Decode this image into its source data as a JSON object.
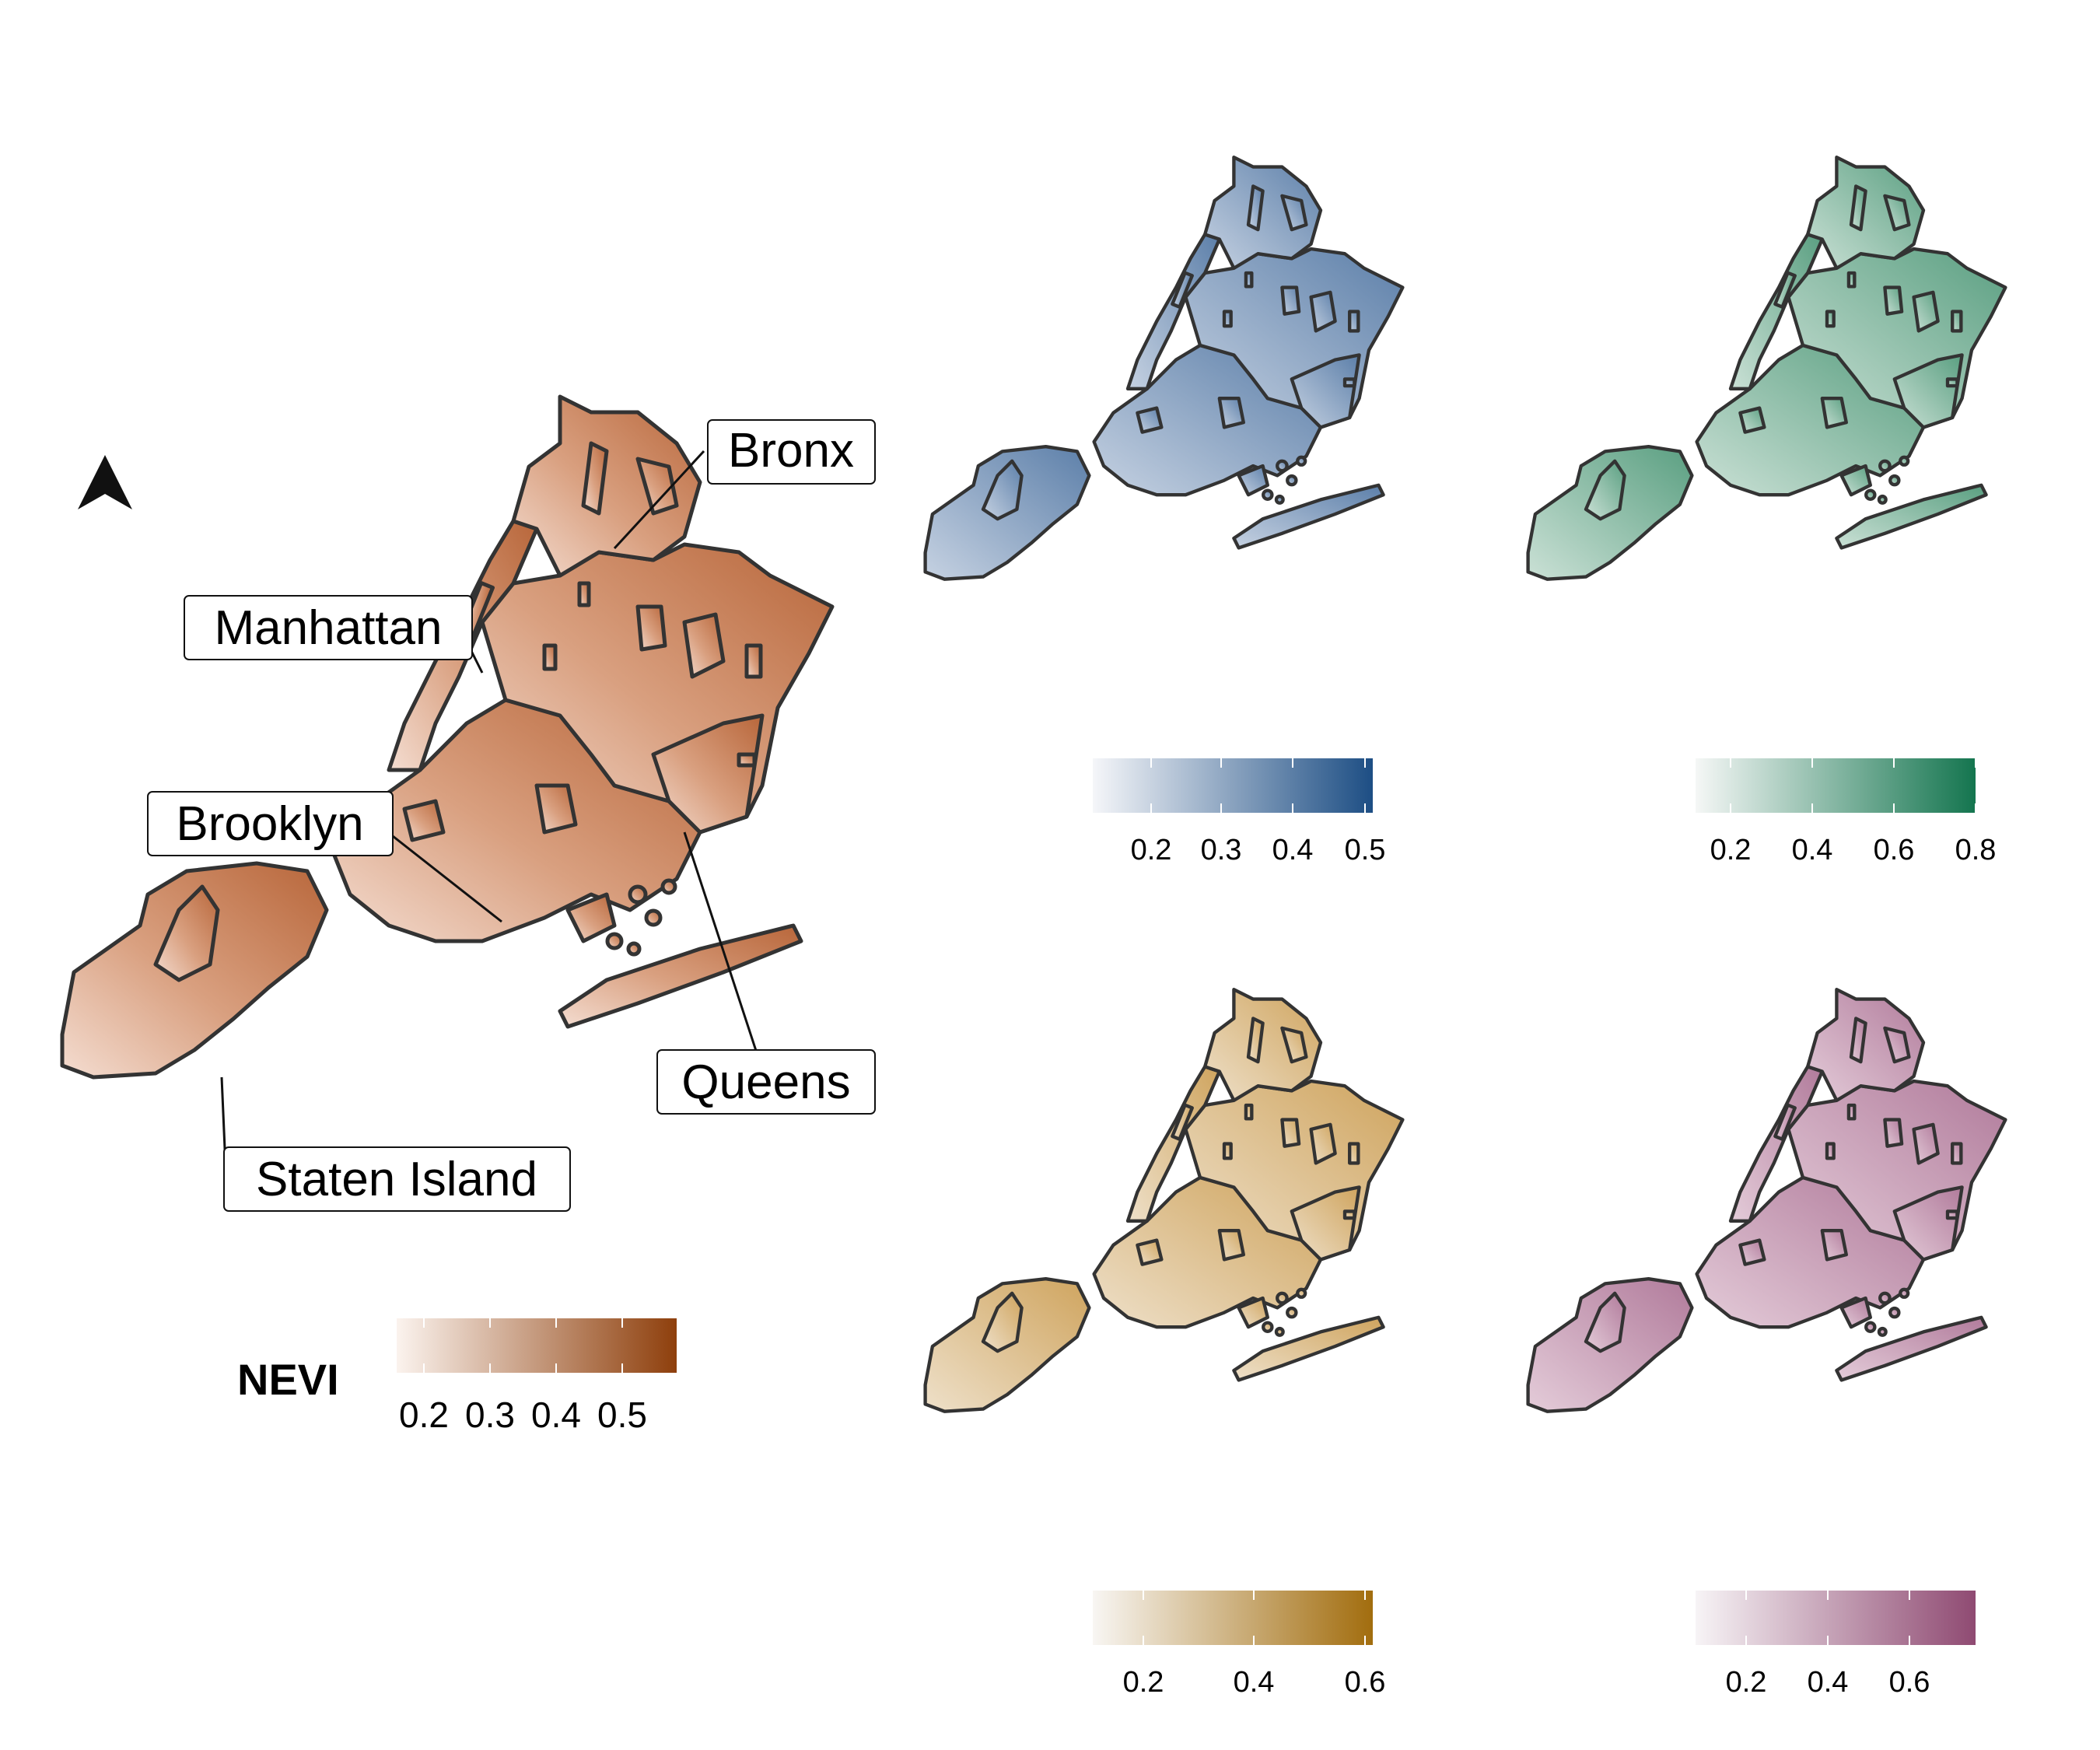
{
  "main_map": {
    "legend_title": "NEVI",
    "legend_ticks": [
      "0.2",
      "0.3",
      "0.4",
      "0.5"
    ],
    "gradient": [
      "#fbf3ee",
      "#8e3f0c"
    ],
    "boroughs": [
      "Bronx",
      "Manhattan",
      "Brooklyn",
      "Queens",
      "Staten Island"
    ]
  },
  "small_maps": [
    {
      "id": "top-left",
      "gradient": [
        "#f5f6f9",
        "#1d4e84"
      ],
      "ticks": [
        "0.2",
        "0.3",
        "0.4",
        "0.5"
      ]
    },
    {
      "id": "top-right",
      "gradient": [
        "#f5f7f6",
        "#14754f"
      ],
      "ticks": [
        "0.2",
        "0.4",
        "0.6",
        "0.8"
      ]
    },
    {
      "id": "bottom-left",
      "gradient": [
        "#f8f6f3",
        "#a26d0e"
      ],
      "ticks": [
        "0.2",
        "0.4",
        "0.6"
      ]
    },
    {
      "id": "bottom-right",
      "gradient": [
        "#f7f4f6",
        "#8f4a72"
      ],
      "ticks": [
        "0.2",
        "0.4",
        "0.6"
      ]
    }
  ],
  "colors": {
    "outline": "#333333",
    "park": "#464646"
  },
  "icons": {
    "north_arrow": "north-arrow-icon"
  }
}
